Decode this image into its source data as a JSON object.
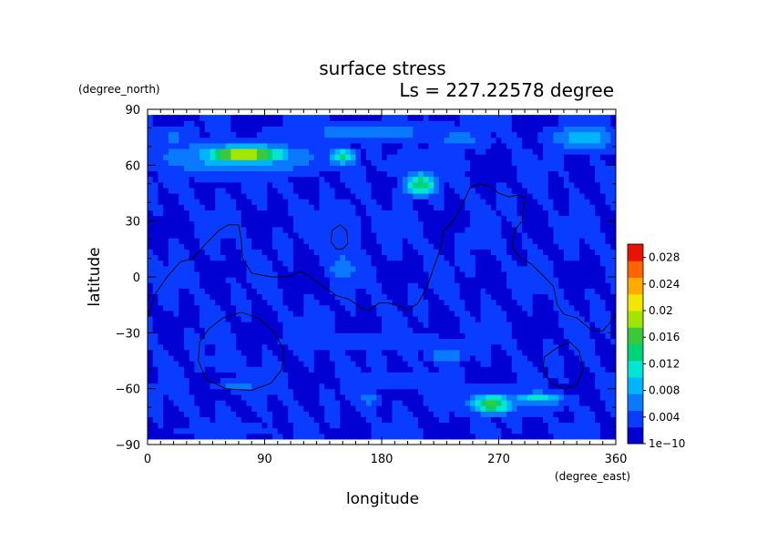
{
  "chart_data": {
    "type": "heatmap",
    "title": "surface stress",
    "subtitle": "Ls = 227.22578 degree",
    "xlabel": "longitude",
    "ylabel": "latitude",
    "x_unit": "(degree_east)",
    "y_unit": "(degree_north)",
    "xlim": [
      0,
      360
    ],
    "ylim": [
      -90,
      90
    ],
    "x_ticks": [
      0,
      90,
      180,
      270,
      360
    ],
    "y_ticks": [
      -90,
      -60,
      -30,
      0,
      30,
      60,
      90
    ],
    "x_tick_labels": [
      "0",
      "90",
      "180",
      "270",
      "360"
    ],
    "y_tick_labels": [
      "−90",
      "−60",
      "−30",
      "0",
      "30",
      "60",
      "90"
    ],
    "data_lat_range": [
      -87,
      87
    ],
    "colorbar": {
      "min": 0,
      "max": 0.03,
      "tick_values": [
        0,
        0.004,
        0.008,
        0.012,
        0.016,
        0.02,
        0.024,
        0.028
      ],
      "tick_labels": [
        "1e−10",
        "0.004",
        "0.008",
        "0.012",
        "0.016",
        "0.02",
        "0.024",
        "0.028"
      ],
      "colors": [
        "#0000d2",
        "#0a3cff",
        "#0a78ff",
        "#00b4ff",
        "#00e6d2",
        "#00d278",
        "#3cc83c",
        "#a0e600",
        "#f0e600",
        "#ffaa00",
        "#ff6400",
        "#e61400"
      ]
    },
    "background_value": 0.0025,
    "features": [
      {
        "lon": 75,
        "lat": 66,
        "rlon": 35,
        "rlat": 5,
        "value": 0.021
      },
      {
        "lon": 70,
        "lat": 64,
        "rlon": 75,
        "rlat": 11,
        "value": 0.009
      },
      {
        "lon": 150,
        "lat": 65,
        "rlon": 12,
        "rlat": 5,
        "value": 0.013
      },
      {
        "lon": 170,
        "lat": 78,
        "rlon": 90,
        "rlat": 8,
        "value": 0.006
      },
      {
        "lon": 240,
        "lat": 74,
        "rlon": 30,
        "rlat": 7,
        "value": 0.006
      },
      {
        "lon": 335,
        "lat": 75,
        "rlon": 30,
        "rlat": 8,
        "value": 0.009
      },
      {
        "lon": 210,
        "lat": 50,
        "rlon": 14,
        "rlat": 7,
        "value": 0.015
      },
      {
        "lon": 215,
        "lat": 60,
        "rlon": 40,
        "rlat": 12,
        "value": 0.005
      },
      {
        "lon": 145,
        "lat": 25,
        "rlon": 22,
        "rlat": 22,
        "value": 0.005
      },
      {
        "lon": 150,
        "lat": 5,
        "rlon": 15,
        "rlat": 10,
        "value": 0.007
      },
      {
        "lon": 135,
        "lat": -25,
        "rlon": 15,
        "rlat": 15,
        "value": 0.004
      },
      {
        "lon": 20,
        "lat": 75,
        "rlon": 15,
        "rlat": 8,
        "value": 0.006
      },
      {
        "lon": 265,
        "lat": -68,
        "rlon": 18,
        "rlat": 6,
        "value": 0.016
      },
      {
        "lon": 300,
        "lat": -65,
        "rlon": 25,
        "rlat": 4,
        "value": 0.011
      },
      {
        "lon": 270,
        "lat": -66,
        "rlon": 60,
        "rlat": 10,
        "value": 0.006
      },
      {
        "lon": 230,
        "lat": -42,
        "rlon": 18,
        "rlat": 5,
        "value": 0.008
      },
      {
        "lon": 170,
        "lat": -65,
        "rlon": 10,
        "rlat": 6,
        "value": 0.006
      },
      {
        "lon": 70,
        "lat": -58,
        "rlon": 22,
        "rlat": 4,
        "value": 0.006
      },
      {
        "lon": 60,
        "lat": -45,
        "rlon": 35,
        "rlat": 12,
        "value": 0.003
      },
      {
        "lon": 180,
        "lat": -35,
        "rlon": 120,
        "rlat": 6,
        "value": 0.004
      },
      {
        "lon": 200,
        "lat": -55,
        "rlon": 60,
        "rlat": 8,
        "value": 0.004
      },
      {
        "lon": 60,
        "lat": -82,
        "rlon": 60,
        "rlat": 5,
        "value": 0.004
      },
      {
        "lon": 250,
        "lat": 20,
        "rlon": 25,
        "rlat": 15,
        "value": 0.003
      },
      {
        "lon": 330,
        "lat": 30,
        "rlon": 20,
        "rlat": 10,
        "value": 0.003
      }
    ],
    "contours": [
      {
        "name": "coastline-north",
        "closed": false,
        "points": [
          [
            0,
            -22
          ],
          [
            5,
            -10
          ],
          [
            15,
            0
          ],
          [
            25,
            8
          ],
          [
            35,
            10
          ],
          [
            45,
            18
          ],
          [
            55,
            25
          ],
          [
            62,
            28
          ],
          [
            70,
            28
          ],
          [
            72,
            20
          ],
          [
            73,
            10
          ],
          [
            80,
            2
          ],
          [
            95,
            0
          ],
          [
            108,
            0
          ],
          [
            118,
            3
          ],
          [
            125,
            0
          ],
          [
            135,
            -5
          ],
          [
            145,
            -10
          ],
          [
            155,
            -12
          ],
          [
            165,
            -17
          ],
          [
            170,
            -18
          ],
          [
            178,
            -14
          ],
          [
            185,
            -14
          ],
          [
            195,
            -16
          ],
          [
            200,
            -18
          ],
          [
            208,
            -14
          ],
          [
            215,
            -5
          ],
          [
            220,
            5
          ],
          [
            225,
            15
          ],
          [
            228,
            25
          ],
          [
            235,
            30
          ],
          [
            240,
            36
          ],
          [
            248,
            48
          ],
          [
            255,
            50
          ],
          [
            262,
            49
          ],
          [
            270,
            45
          ],
          [
            278,
            43
          ],
          [
            285,
            44
          ],
          [
            290,
            42
          ],
          [
            288,
            30
          ],
          [
            282,
            25
          ],
          [
            280,
            16
          ],
          [
            287,
            10
          ],
          [
            295,
            7
          ],
          [
            305,
            0
          ],
          [
            312,
            -5
          ],
          [
            315,
            -15
          ],
          [
            320,
            -20
          ],
          [
            330,
            -22
          ],
          [
            342,
            -29
          ],
          [
            350,
            -29
          ],
          [
            355,
            -25
          ],
          [
            360,
            -20
          ]
        ]
      },
      {
        "name": "hellas-basin",
        "closed": true,
        "points": [
          [
            40,
            -35
          ],
          [
            47,
            -28
          ],
          [
            58,
            -22
          ],
          [
            72,
            -19
          ],
          [
            85,
            -22
          ],
          [
            98,
            -30
          ],
          [
            105,
            -40
          ],
          [
            103,
            -50
          ],
          [
            95,
            -57
          ],
          [
            80,
            -61
          ],
          [
            60,
            -60
          ],
          [
            45,
            -55
          ],
          [
            39,
            -45
          ]
        ]
      },
      {
        "name": "argyre-basin",
        "closed": true,
        "points": [
          [
            305,
            -43
          ],
          [
            315,
            -38
          ],
          [
            325,
            -35
          ],
          [
            332,
            -40
          ],
          [
            335,
            -50
          ],
          [
            330,
            -58
          ],
          [
            320,
            -60
          ],
          [
            310,
            -57
          ],
          [
            304,
            -50
          ]
        ]
      },
      {
        "name": "olympus-ring",
        "closed": true,
        "points": [
          [
            142,
            25
          ],
          [
            148,
            28
          ],
          [
            153,
            25
          ],
          [
            154,
            18
          ],
          [
            150,
            15
          ],
          [
            145,
            15
          ],
          [
            141,
            19
          ]
        ]
      }
    ]
  }
}
